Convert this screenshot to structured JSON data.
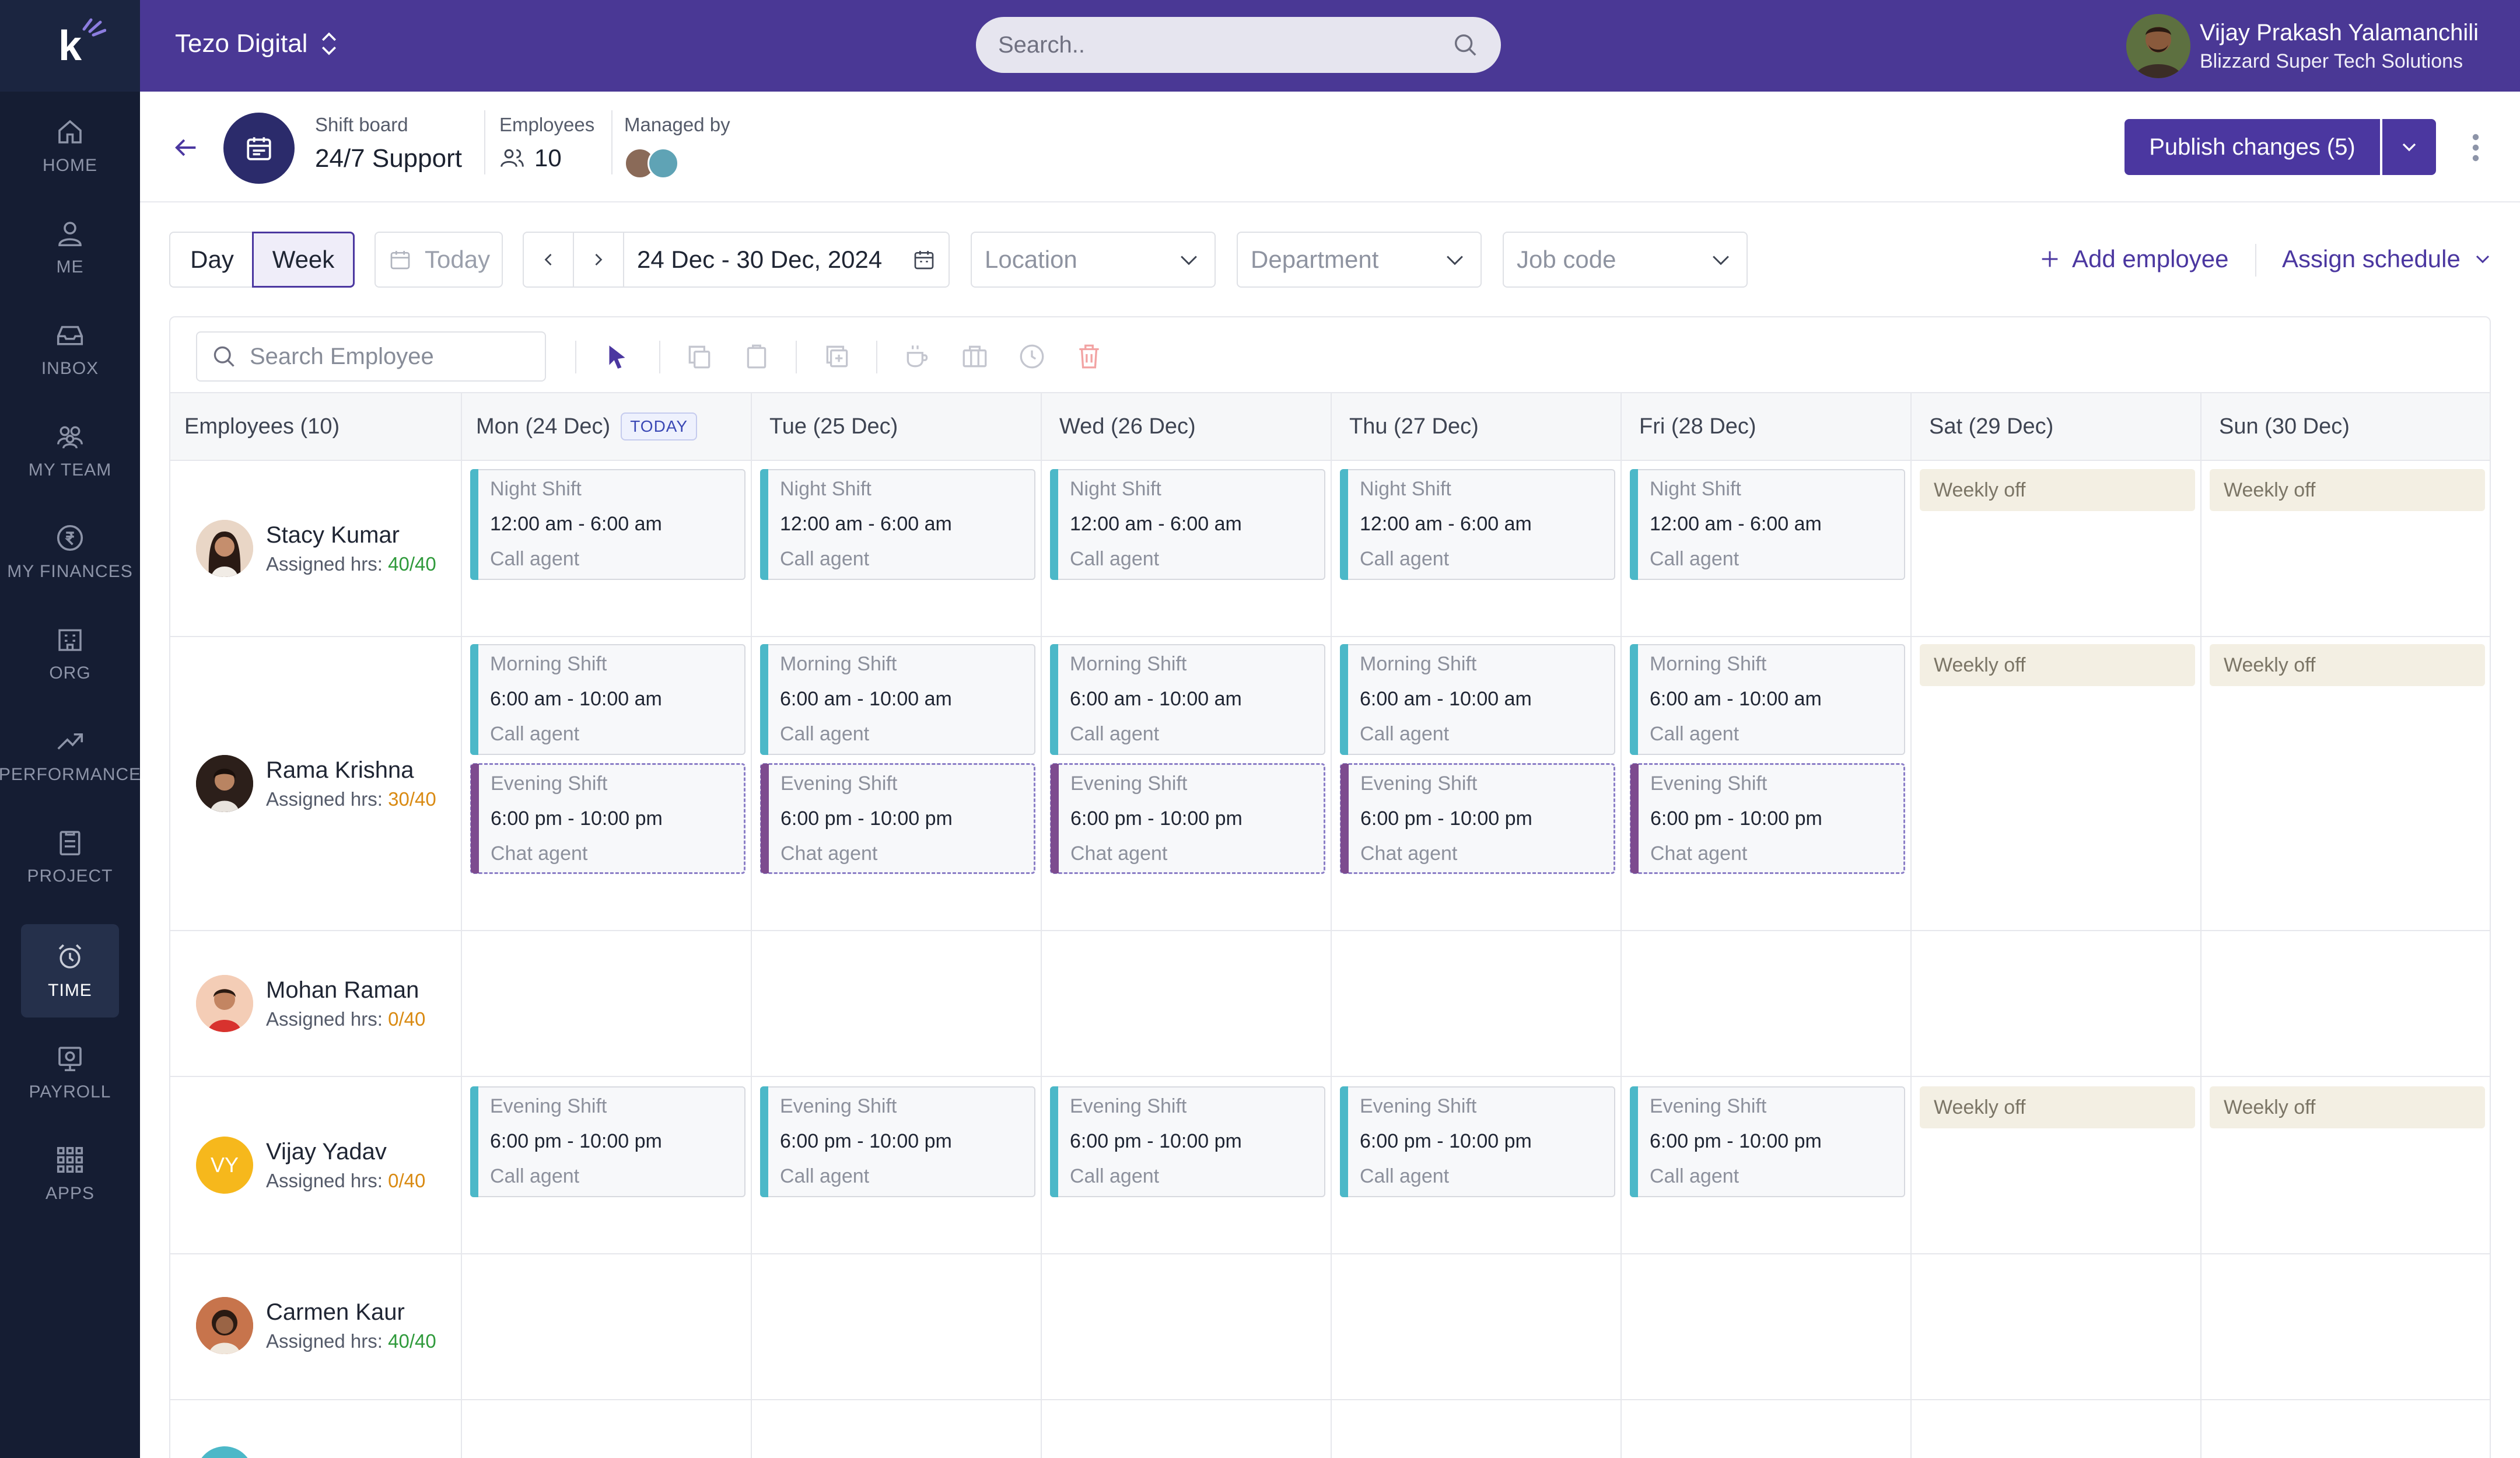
{
  "sidebar": {
    "items": [
      {
        "label": "HOME",
        "icon": "home-icon"
      },
      {
        "label": "ME",
        "icon": "person-icon"
      },
      {
        "label": "INBOX",
        "icon": "inbox-icon"
      },
      {
        "label": "MY TEAM",
        "icon": "team-icon"
      },
      {
        "label": "MY FINANCES",
        "icon": "rupee-icon"
      },
      {
        "label": "ORG",
        "icon": "building-icon"
      },
      {
        "label": "PERFORMANCE",
        "icon": "trend-icon"
      },
      {
        "label": "PROJECT",
        "icon": "clipboard-icon"
      },
      {
        "label": "TIME",
        "icon": "alarm-clock-icon"
      },
      {
        "label": "PAYROLL",
        "icon": "payroll-icon"
      },
      {
        "label": "APPS",
        "icon": "grid-icon"
      }
    ],
    "active": "TIME"
  },
  "topbar": {
    "org_name": "Tezo Digital",
    "search_placeholder": "Search..",
    "user_name": "Vijay Prakash Yalamanchili",
    "user_company": "Blizzard Super Tech Solutions"
  },
  "header": {
    "board_label": "Shift board",
    "board_name": "24/7 Support",
    "employees_label": "Employees",
    "employees_count": "10",
    "managed_label": "Managed by",
    "publish_label": "Publish changes (5)"
  },
  "toolbar": {
    "day": "Day",
    "week": "Week",
    "today": "Today",
    "date_range": "24 Dec - 30 Dec, 2024",
    "location": "Location",
    "department": "Department",
    "job_code": "Job code",
    "add_employee": "Add employee",
    "assign_schedule": "Assign schedule"
  },
  "grid": {
    "search_placeholder": "Search Employee",
    "employees_header": "Employees (10)",
    "today_badge": "TODAY",
    "days": [
      "Mon (24 Dec)",
      "Tue (25 Dec)",
      "Wed (26 Dec)",
      "Thu (27 Dec)",
      "Fri (28 Dec)",
      "Sat (29 Dec)",
      "Sun (30 Dec)"
    ],
    "assigned_label": "Assigned hrs:",
    "weekly_off": "Weekly off",
    "employees": [
      {
        "name": "Stacy Kumar",
        "hours": "40/40"
      },
      {
        "name": "Rama Krishna",
        "hours": "30/40"
      },
      {
        "name": "Mohan Raman",
        "hours": "0/40"
      },
      {
        "name": "Vijay Yadav",
        "hours": "0/40",
        "initials": "VY"
      },
      {
        "name": "Carmen Kaur",
        "hours": "40/40"
      }
    ],
    "shifts": {
      "night": {
        "name": "Night Shift",
        "time": "12:00 am - 6:00 am",
        "role": "Call agent",
        "color": "#4cb8c8"
      },
      "morning": {
        "name": "Morning Shift",
        "time": "6:00 am - 10:00 am",
        "role": "Call agent",
        "color": "#4cb8c8"
      },
      "evening_chat": {
        "name": "Evening Shift",
        "time": "6:00 pm - 10:00 pm",
        "role": "Chat agent",
        "color": "#7d4b8f"
      },
      "evening_call": {
        "name": "Evening Shift",
        "time": "6:00 pm - 10:00 pm",
        "role": "Call agent",
        "color": "#4cb8c8"
      }
    }
  },
  "colors": {
    "brand": "#4a3895",
    "sidebar": "#151d33",
    "accent": "#4b37a0"
  }
}
